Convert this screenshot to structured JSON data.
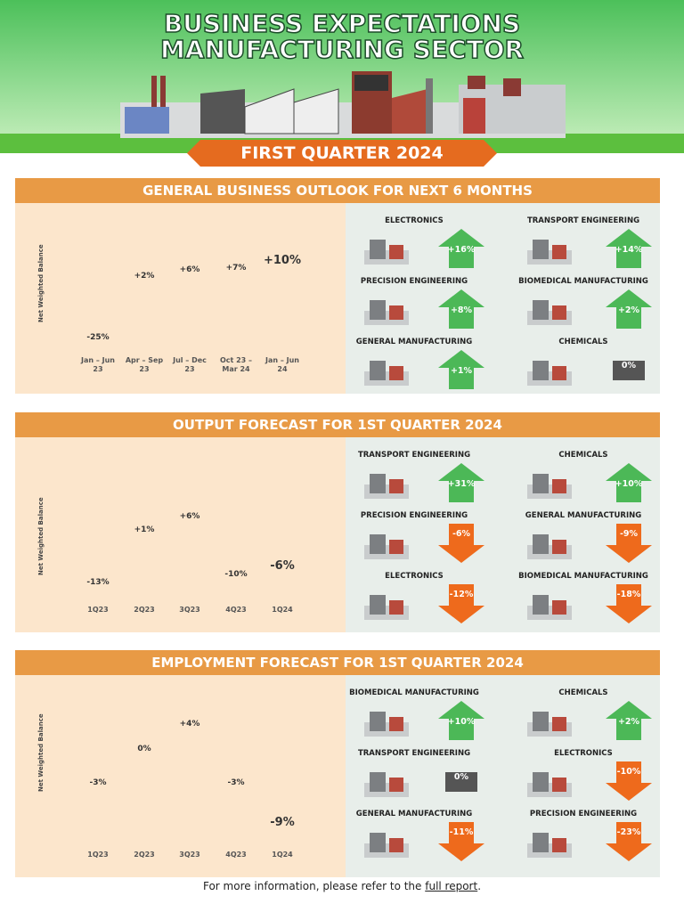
{
  "header": {
    "title_lines": [
      "BUSINESS EXPECTATIONS",
      "MANUFACTURING SECTOR"
    ],
    "ribbon": "FIRST QUARTER 2024"
  },
  "chart_data": [
    {
      "type": "bar",
      "title": "GENERAL BUSINESS OUTLOOK FOR NEXT 6 MONTHS",
      "y_label": "Net Weighted Balance",
      "categories": [
        "Jan – Jun 23",
        "Apr – Sep 23",
        "Jul – Dec 23",
        "Oct 23 – Mar 24",
        "Jan – Jun 24"
      ],
      "values": [
        -25,
        2,
        6,
        7,
        10
      ],
      "value_labels": [
        "-25%",
        "+2%",
        "+6%",
        "+7%",
        "+10%"
      ],
      "color": "#e9a049",
      "ylim": [
        -30,
        15
      ]
    },
    {
      "type": "bar",
      "title": "OUTPUT FORECAST FOR 1ST QUARTER 2024",
      "y_label": "Net Weighted Balance",
      "categories": [
        "1Q23",
        "2Q23",
        "3Q23",
        "4Q23",
        "1Q24"
      ],
      "values": [
        -13,
        1,
        6,
        -10,
        -6
      ],
      "value_labels": [
        "-13%",
        "+1%",
        "+6%",
        "-10%",
        "-6%"
      ],
      "color": "#e9a049",
      "ylim": [
        -15,
        10
      ]
    },
    {
      "type": "pictograph",
      "title": "EMPLOYMENT FORECAST FOR 1ST QUARTER 2024",
      "y_label": "Net Weighted Balance",
      "categories": [
        "1Q23",
        "2Q23",
        "3Q23",
        "4Q23",
        "1Q24"
      ],
      "values": [
        -3,
        0,
        4,
        -3,
        -9
      ],
      "value_labels": [
        "-3%",
        "0%",
        "+4%",
        "-3%",
        "-9%"
      ],
      "color": "#e9a049",
      "ylim": [
        -10,
        6
      ]
    }
  ],
  "industry_panels": [
    {
      "tiles": [
        {
          "name": "ELECTRONICS",
          "value": 16,
          "value_label": "+16%"
        },
        {
          "name": "TRANSPORT ENGINEERING",
          "value": 14,
          "value_label": "+14%"
        },
        {
          "name": "PRECISION ENGINEERING",
          "value": 8,
          "value_label": "+8%"
        },
        {
          "name": "BIOMEDICAL MANUFACTURING",
          "value": 2,
          "value_label": "+2%"
        },
        {
          "name": "GENERAL MANUFACTURING",
          "value": 1,
          "value_label": "+1%"
        },
        {
          "name": "CHEMICALS",
          "value": 0,
          "value_label": "0%"
        }
      ]
    },
    {
      "tiles": [
        {
          "name": "TRANSPORT ENGINEERING",
          "value": 31,
          "value_label": "+31%"
        },
        {
          "name": "CHEMICALS",
          "value": 10,
          "value_label": "+10%"
        },
        {
          "name": "PRECISION ENGINEERING",
          "value": -6,
          "value_label": "-6%"
        },
        {
          "name": "GENERAL MANUFACTURING",
          "value": -9,
          "value_label": "-9%"
        },
        {
          "name": "ELECTRONICS",
          "value": -12,
          "value_label": "-12%"
        },
        {
          "name": "BIOMEDICAL MANUFACTURING",
          "value": -18,
          "value_label": "-18%"
        }
      ]
    },
    {
      "tiles": [
        {
          "name": "BIOMEDICAL MANUFACTURING",
          "value": 10,
          "value_label": "+10%"
        },
        {
          "name": "CHEMICALS",
          "value": 2,
          "value_label": "+2%"
        },
        {
          "name": "TRANSPORT ENGINEERING",
          "value": 0,
          "value_label": "0%"
        },
        {
          "name": "ELECTRONICS",
          "value": -10,
          "value_label": "-10%"
        },
        {
          "name": "GENERAL MANUFACTURING",
          "value": -11,
          "value_label": "-11%"
        },
        {
          "name": "PRECISION ENGINEERING",
          "value": -23,
          "value_label": "-23%"
        }
      ]
    }
  ],
  "footer": {
    "parts": [
      "For more information, please refer to the ",
      "full report",
      "."
    ]
  }
}
